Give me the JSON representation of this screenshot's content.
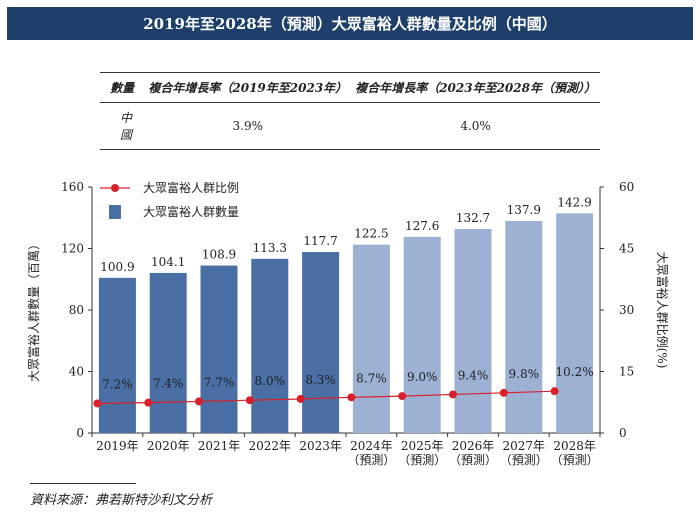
{
  "title": "2019年至2028年（預測）大眾富裕人群數量及比例（中國）",
  "cagr_table": {
    "headers": [
      "數量",
      "複合年增長率（2019年至2023年）",
      "複合年增長率（2023年至2028年（預測））"
    ],
    "rows": [
      {
        "label": "中國",
        "values": [
          "3.9%",
          "4.0%"
        ]
      }
    ]
  },
  "chart_data": {
    "type": "bar",
    "categories": [
      "2019年",
      "2020年",
      "2021年",
      "2022年",
      "2023年",
      "2024年",
      "2025年",
      "2026年",
      "2027年",
      "2028年"
    ],
    "category_sublabels": [
      "",
      "",
      "",
      "",
      "",
      "（預測）",
      "（預測）",
      "（預測）",
      "（預測）",
      "（預測）"
    ],
    "series": [
      {
        "name": "大眾富裕人群數量",
        "type": "bar",
        "values": [
          100.9,
          104.1,
          108.9,
          113.3,
          117.7,
          122.5,
          127.6,
          132.7,
          137.9,
          142.9
        ],
        "labels": [
          "100.9",
          "104.1",
          "108.9",
          "113.3",
          "117.7",
          "122.5",
          "127.6",
          "132.7",
          "137.9",
          "142.9"
        ],
        "axis": "left"
      },
      {
        "name": "大眾富裕人群比例",
        "type": "line",
        "values": [
          7.2,
          7.4,
          7.7,
          8.0,
          8.3,
          8.7,
          9.0,
          9.4,
          9.8,
          10.2
        ],
        "labels": [
          "7.2%",
          "7.4%",
          "7.7%",
          "8.0%",
          "8.3%",
          "8.7%",
          "9.0%",
          "9.4%",
          "9.8%",
          "10.2%"
        ],
        "axis": "right"
      }
    ],
    "ylabel": "大眾富裕人群數量（百萬）",
    "y2label": "大眾富裕人群比例(%)",
    "ylim": [
      0,
      160
    ],
    "y2lim": [
      0,
      60
    ],
    "yticks": [
      0,
      40,
      80,
      120,
      160
    ],
    "y2ticks": [
      0,
      15,
      30,
      45,
      60
    ],
    "legend": "top-left",
    "grid": false,
    "colors": {
      "bar_actual": "#4a6fa5",
      "bar_forecast": "#9db1d3",
      "line": "#d9202a"
    }
  },
  "source": "資料來源：弗若斯特沙利文分析"
}
